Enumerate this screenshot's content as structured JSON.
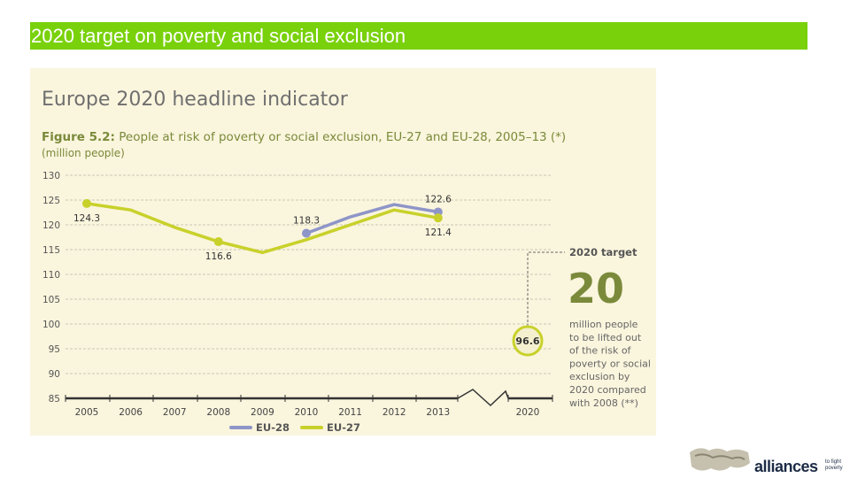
{
  "slide": {
    "title": "2020 target on poverty and social exclusion"
  },
  "colors": {
    "title_bar": "#79d10c",
    "panel": "#faf5dd",
    "eu28": "#8e95c8",
    "eu27": "#c8d12a",
    "text_green": "#7a8a3a"
  },
  "chart_data": {
    "type": "line",
    "heading": "Europe 2020 headline indicator",
    "title_prefix": "Figure 5.2:",
    "title_rest": " People at risk of poverty or social exclusion, EU-27 and EU-28, 2005–13 (*)",
    "subtitle": "(million people)",
    "ylim": [
      85,
      130
    ],
    "yticks": [
      85,
      90,
      95,
      100,
      105,
      110,
      115,
      120,
      125,
      130
    ],
    "x_labels": [
      "2005",
      "2006",
      "2007",
      "2008",
      "2009",
      "2010",
      "2011",
      "2012",
      "2013",
      "2020"
    ],
    "series": [
      {
        "name": "EU-27",
        "x": [
          2005,
          2006,
          2007,
          2008,
          2009,
          2010,
          2011,
          2012,
          2013
        ],
        "values": [
          124.3,
          123.0,
          119.5,
          116.6,
          114.4,
          117.0,
          120.0,
          123.0,
          121.4
        ]
      },
      {
        "name": "EU-28",
        "x": [
          2010,
          2011,
          2012,
          2013
        ],
        "values": [
          118.3,
          121.6,
          124.1,
          122.6
        ]
      }
    ],
    "point_labels": [
      {
        "series": "EU-27",
        "x": 2005,
        "value": 124.3,
        "text": "124.3"
      },
      {
        "series": "EU-27",
        "x": 2008,
        "value": 116.6,
        "text": "116.6"
      },
      {
        "series": "EU-28",
        "x": 2010,
        "value": 118.3,
        "text": "118.3"
      },
      {
        "series": "EU-28",
        "x": 2013,
        "value": 122.6,
        "text": "122.6"
      },
      {
        "series": "EU-27",
        "x": 2013,
        "value": 121.4,
        "text": "121.4"
      }
    ],
    "target": {
      "x": 2020,
      "value": 96.6,
      "text": "96.6",
      "heading": "2020 target",
      "big_number": "20",
      "description": [
        "million people",
        "to be lifted out",
        "of the risk of",
        "poverty or social",
        "exclusion by",
        "2020 compared",
        "with 2008 (**)"
      ]
    },
    "legend": [
      {
        "name": "EU-28",
        "color": "#8e95c8"
      },
      {
        "name": "EU-27",
        "color": "#c8d12a"
      }
    ]
  },
  "logo": {
    "word": "alliances",
    "small_text": "to fight poverty"
  }
}
